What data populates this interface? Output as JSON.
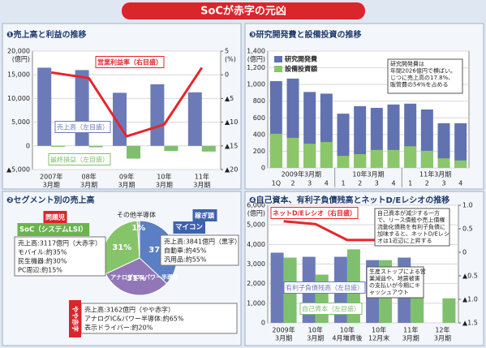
{
  "title": "SoCが赤字の元凶",
  "chart_data": [
    {
      "type": "combo",
      "title": "❶売上高と利益の推移",
      "ylabel": "(億円)",
      "y2label": "(%)",
      "categories": [
        [
          "2007年",
          "3月期"
        ],
        [
          "08年",
          "3月期"
        ],
        [
          "09年",
          "3月期"
        ],
        [
          "10年",
          "3月期"
        ],
        [
          "11年",
          "3月期"
        ]
      ],
      "series": [
        {
          "name": "売上高（左目盛）",
          "kind": "bar",
          "color": "#6c7bb8",
          "values": [
            16500,
            16000,
            11200,
            13000,
            11300
          ]
        },
        {
          "name": "最終損益（左目盛）",
          "kind": "bar",
          "color": "#7fc06e",
          "values": [
            -200,
            -300,
            -2700,
            -1100,
            -1200
          ]
        },
        {
          "name": "営業利益率（右目盛）",
          "kind": "line",
          "color": "#e6262b",
          "axis": "y2",
          "values": [
            0.5,
            -0.7,
            -13,
            -10.5,
            1.5
          ]
        }
      ],
      "ylim": [
        -5000,
        20000
      ],
      "yticks": [
        {
          "value": 20000,
          "label": "20,000"
        },
        {
          "value": 15000,
          "label": "15,000"
        },
        {
          "value": 10000,
          "label": "10,000"
        },
        {
          "value": 5000,
          "label": "5,000"
        },
        0,
        {
          "value": -5000,
          "label": "▲5,000"
        }
      ],
      "y2lim": [
        -20,
        5
      ],
      "y2ticks": [
        5,
        0,
        {
          "value": -5,
          "label": "▲5"
        },
        {
          "value": -10,
          "label": "▲10"
        },
        {
          "value": -15,
          "label": "▲15"
        },
        {
          "value": -20,
          "label": "▲20"
        }
      ],
      "grid": true
    },
    {
      "type": "pie",
      "title": "❷セグメント別の売上高",
      "categories": [
        "SoC（システムLSI）",
        "マイコン",
        "アナログIC&パワー半導体",
        "その他半導体"
      ],
      "values": [
        31,
        37,
        31,
        1
      ],
      "value_labels": [
        "31%",
        "37%",
        "31%",
        "1%"
      ],
      "colors": [
        "#86c46a",
        "#5b7fc4",
        "#9277b8",
        "#b8b8b8"
      ],
      "callouts": [
        {
          "tag": "問題児",
          "lines": [
            "売上高:3117億円（大赤字）",
            "モバイル:約35%",
            "民生機器:約30%",
            "PC周辺:約15%"
          ]
        },
        {
          "tag": "稼ぎ頭",
          "lines": [
            "売上高:3841億円（黒字）",
            "自動車:約45%",
            "汎用品:約55%"
          ]
        },
        {
          "tag": "やや赤字",
          "lines": [
            "売上高:3162億円（やや赤字）",
            "アナログIC&パワー半導体:約65%",
            "表示ドライバー:約20%"
          ]
        }
      ]
    },
    {
      "type": "combo",
      "title": "❸研究開発費と設備投資の推移",
      "ylabel": "(億円)",
      "overlay": true,
      "categories": [
        "1Q",
        "2",
        "3",
        "4",
        "1",
        "2",
        "3",
        "4",
        "1",
        "2",
        "3",
        "4"
      ],
      "category_groups": [
        "2009年3月期",
        "10年3月期",
        "11年3月期"
      ],
      "series": [
        {
          "name": "研究開発費",
          "kind": "bar",
          "color": "#6272b0",
          "values": [
            1040,
            1070,
            910,
            890,
            650,
            740,
            720,
            760,
            770,
            700,
            535,
            535
          ]
        },
        {
          "name": "設備投資額",
          "kind": "bar",
          "color": "#8cc66b",
          "values": [
            410,
            360,
            290,
            310,
            145,
            165,
            215,
            215,
            260,
            205,
            115,
            90
          ]
        }
      ],
      "ylim": [
        0,
        1400
      ],
      "yticks": [
        0,
        200,
        400,
        600,
        800,
        {
          "value": 1000,
          "label": "1,000"
        },
        {
          "value": 1200,
          "label": "1,200"
        },
        {
          "value": 1400,
          "label": "1,400"
        }
      ],
      "grid": true,
      "annotations": [
        [
          "研究開発費は",
          "年間2026億円で横ばい。",
          "じつに売上高の17.8%、",
          "販管費の54%を占める"
        ]
      ]
    },
    {
      "type": "combo",
      "title": "❹自己資本、有利子負債残高とネットD/Eレシオの推移",
      "ylabel": "(億円)",
      "categories": [
        [
          "2009年",
          "3月期"
        ],
        [
          "10年",
          "3月期"
        ],
        [
          "10年",
          "4月増資後"
        ],
        [
          "10年",
          "12月末"
        ],
        [
          "11年",
          "3月期"
        ],
        [
          "12年",
          "3月期"
        ]
      ],
      "series": [
        {
          "name": "有利子負債残高（左目盛）",
          "kind": "bar",
          "color": "#6c7bb8",
          "values": [
            3580,
            3370,
            3370,
            3200,
            3330,
            null
          ]
        },
        {
          "name": "自己資本（左目盛）",
          "kind": "bar",
          "color": "#7fc06e",
          "values": [
            3330,
            2460,
            3750,
            3200,
            2120,
            1250
          ]
        },
        {
          "name": "ネットD/Eレシオ（右目盛）",
          "kind": "line",
          "color": "#e6262b",
          "axis": "y2",
          "values": [
            0.66,
            0.6,
            0.26,
            0.26,
            0.19,
            null
          ]
        }
      ],
      "ylim": [
        0,
        6000
      ],
      "yticks": [
        0,
        {
          "value": 1000,
          "label": "1,000"
        },
        {
          "value": 2000,
          "label": "2,000"
        },
        {
          "value": 3000,
          "label": "3,000"
        },
        {
          "value": 4000,
          "label": "4,000"
        },
        {
          "value": 5000,
          "label": "5,000"
        },
        {
          "value": 6000,
          "label": "6,000"
        }
      ],
      "y2lim": [
        -1.5,
        1
      ],
      "y2ticks": [
        {
          "value": 1,
          "label": "1.0"
        },
        0.5,
        0,
        {
          "value": -0.5,
          "label": "▲0.5"
        },
        {
          "value": -1,
          "label": "▲1.0"
        },
        {
          "value": -1.5,
          "label": "▲1.5"
        }
      ],
      "grid": true,
      "annotations": [
        [
          "自己資本が減少する一方",
          "で、リース債務や売上債権",
          "流動化債務を有利子負債に",
          "加味すると、ネットD/Eレシ",
          "オは1近辺に上昇する"
        ],
        [
          "生産ストップによる営",
          "業減益や、地震被害",
          "の支払いが今期にキ",
          "ャッシュアウト"
        ]
      ]
    }
  ]
}
